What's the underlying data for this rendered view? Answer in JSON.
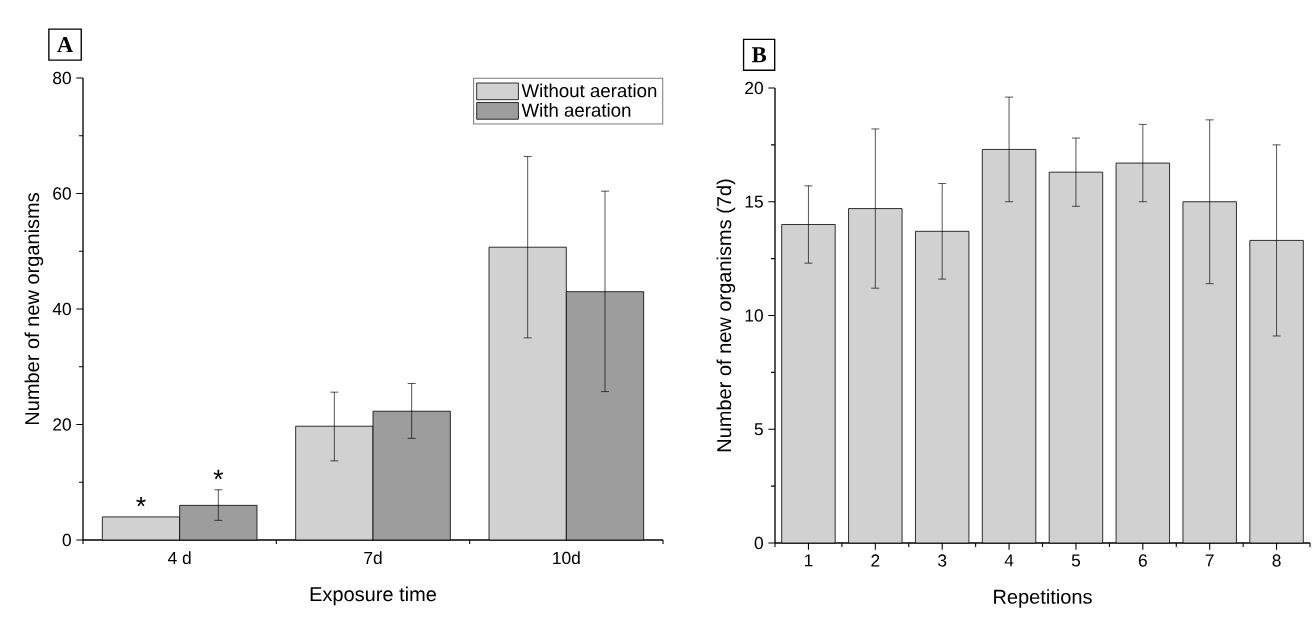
{
  "chart_data": [
    {
      "type": "bar",
      "title": "A",
      "xlabel": "Exposure time",
      "ylabel": "Number of new organisms",
      "categories": [
        "4 d",
        "7d",
        "10d"
      ],
      "series": [
        {
          "name": "Without aeration",
          "color": "#d0d1d0",
          "values": [
            4,
            19.7,
            50.7
          ],
          "errors": [
            null,
            [
              13.7,
              25.6
            ],
            [
              35,
              66.4
            ]
          ]
        },
        {
          "name": "With aeration",
          "color": "#9c9d9c",
          "values": [
            6,
            22.3,
            43
          ],
          "errors": [
            [
              3.4,
              8.7
            ],
            [
              17.6,
              27.1
            ],
            [
              25.7,
              60.4
            ]
          ]
        }
      ],
      "ylim": [
        0,
        80
      ],
      "yticks": [
        0,
        20,
        40,
        60,
        80
      ],
      "legend": "top right",
      "grid": false,
      "annotations": [
        "*",
        "*"
      ]
    },
    {
      "type": "bar",
      "title": "B",
      "xlabel": "Repetitions",
      "ylabel": "Number of new organisms (7d)",
      "categories": [
        "1",
        "2",
        "3",
        "4",
        "5",
        "6",
        "7",
        "8"
      ],
      "series": [
        {
          "color": "#d0d1d0",
          "values": [
            14,
            14.7,
            13.7,
            17.3,
            16.3,
            16.7,
            15,
            13.3
          ],
          "errors": [
            [
              12.3,
              15.7
            ],
            [
              11.2,
              18.2
            ],
            [
              11.6,
              15.8
            ],
            [
              15,
              19.6
            ],
            [
              14.8,
              17.8
            ],
            [
              15,
              18.4
            ],
            [
              11.4,
              18.6
            ],
            [
              9.1,
              17.5
            ]
          ]
        }
      ],
      "ylim": [
        0,
        20
      ],
      "yticks": [
        0,
        5,
        10,
        15,
        20
      ],
      "grid": false
    }
  ]
}
